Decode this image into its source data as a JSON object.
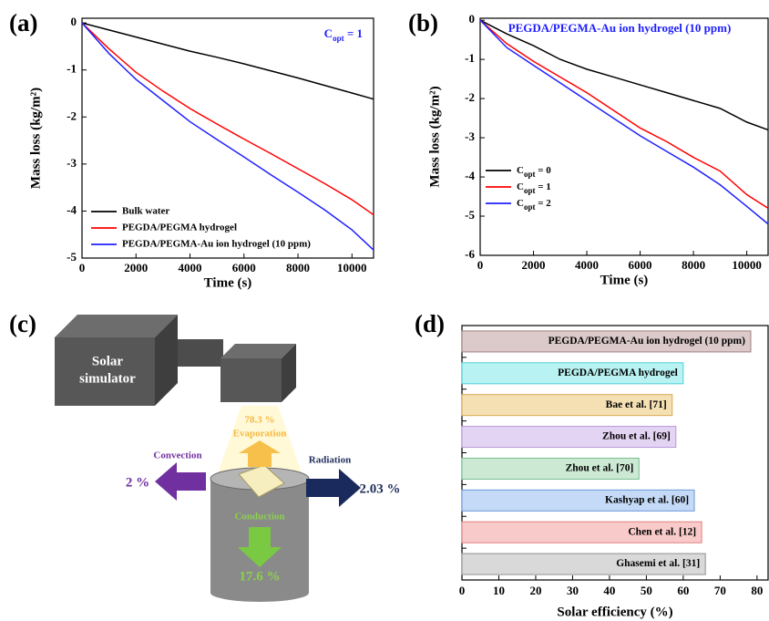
{
  "chart_data": [
    {
      "type": "line",
      "panel_label": "(a)",
      "annotation": {
        "base": "C",
        "sub": "opt",
        "tail": " = 1"
      },
      "x_label": "Time (s)",
      "y_label": "Mass loss (kg/m²)",
      "x": [
        0,
        1000,
        2000,
        3000,
        4000,
        5000,
        6000,
        7000,
        8000,
        9000,
        10000,
        10800
      ],
      "xlim": [
        0,
        10800
      ],
      "xticks": [
        0,
        2000,
        4000,
        6000,
        8000,
        10000
      ],
      "ylim": [
        -5,
        0.1
      ],
      "yticks": [
        0,
        -1,
        -2,
        -3,
        -4,
        -5
      ],
      "legend": "lower left",
      "series": [
        {
          "name": "Bulk water",
          "color": "#000000",
          "values": [
            0,
            -0.15,
            -0.3,
            -0.45,
            -0.6,
            -0.73,
            -0.87,
            -1.02,
            -1.17,
            -1.33,
            -1.49,
            -1.62
          ]
        },
        {
          "name": "PEGDA/PEGMA hydrogel",
          "color": "#ff0000",
          "values": [
            0,
            -0.55,
            -1.05,
            -1.45,
            -1.82,
            -2.15,
            -2.47,
            -2.78,
            -3.1,
            -3.42,
            -3.76,
            -4.08
          ]
        },
        {
          "name": "PEGDA/PEGMA-Au ion hydrogel (10 ppm)",
          "color": "#2020ff",
          "values": [
            0,
            -0.65,
            -1.2,
            -1.65,
            -2.1,
            -2.48,
            -2.85,
            -3.23,
            -3.6,
            -3.98,
            -4.4,
            -4.83
          ]
        }
      ]
    },
    {
      "type": "line",
      "panel_label": "(b)",
      "annotation": "PEGDA/PEGMA-Au ion hydrogel (10 ppm)",
      "x_label": "Time (s)",
      "y_label": "Mass loss (kg/m²)",
      "x": [
        0,
        1000,
        2000,
        3000,
        4000,
        5000,
        6000,
        7000,
        8000,
        9000,
        10000,
        10800
      ],
      "xlim": [
        0,
        10800
      ],
      "xticks": [
        0,
        2000,
        4000,
        6000,
        8000,
        10000
      ],
      "ylim": [
        -6,
        0.05
      ],
      "yticks": [
        0,
        -1,
        -2,
        -3,
        -4,
        -5,
        -6
      ],
      "legend": "lower left",
      "series": [
        {
          "name": {
            "base": "C",
            "sub": "opt",
            "tail": " = 0"
          },
          "color": "#000000",
          "values": [
            0,
            -0.35,
            -0.65,
            -1.0,
            -1.25,
            -1.45,
            -1.65,
            -1.85,
            -2.05,
            -2.25,
            -2.6,
            -2.8
          ]
        },
        {
          "name": {
            "base": "C",
            "sub": "opt",
            "tail": " = 1"
          },
          "color": "#ff0000",
          "values": [
            0,
            -0.6,
            -1.05,
            -1.45,
            -1.85,
            -2.3,
            -2.75,
            -3.1,
            -3.5,
            -3.85,
            -4.45,
            -4.8
          ]
        },
        {
          "name": {
            "base": "C",
            "sub": "opt",
            "tail": " = 2"
          },
          "color": "#2020ff",
          "values": [
            0,
            -0.7,
            -1.15,
            -1.6,
            -2.05,
            -2.5,
            -2.95,
            -3.35,
            -3.75,
            -4.2,
            -4.75,
            -5.2
          ]
        }
      ]
    },
    {
      "type": "hbar",
      "panel_label": "(d)",
      "x_label": "Solar efficiency (%)",
      "categories": [
        "PEGDA/PEGMA-Au ion hydrogel (10 ppm)",
        "PEGDA/PEGMA hydrogel",
        "Bae et al. [71]",
        "Zhou et al. [69]",
        "Zhou et al. [70]",
        "Kashyap et al. [60]",
        "Chen et al. [12]",
        "Ghasemi et al. [31]"
      ],
      "values": [
        78.3,
        60,
        57,
        58,
        48,
        63,
        65,
        66
      ],
      "colors": [
        "#dccaca",
        "#b8f2f2",
        "#f5e0b4",
        "#e4d4f4",
        "#cce9d4",
        "#c4daf6",
        "#f9caca",
        "#d9d9d9"
      ],
      "edge_colors": [
        "#9e7f7f",
        "#4fd0d8",
        "#d8a850",
        "#b898d8",
        "#78c090",
        "#6898d8",
        "#e08080",
        "#909090"
      ],
      "xlim": [
        0,
        83
      ],
      "xticks": [
        0,
        10,
        20,
        30,
        40,
        50,
        60,
        70,
        80
      ]
    }
  ],
  "diagram": {
    "panel_label": "(c)",
    "simulator": [
      "Solar",
      "simulator"
    ],
    "evaporation_value": "78.3 %",
    "evaporation": "Evaporation",
    "convection": "Convection",
    "convection_value": "2 %",
    "radiation": "Radiation",
    "radiation_value": "2.03 %",
    "conduction": "Conduction",
    "conduction_value": "17.6 %"
  }
}
